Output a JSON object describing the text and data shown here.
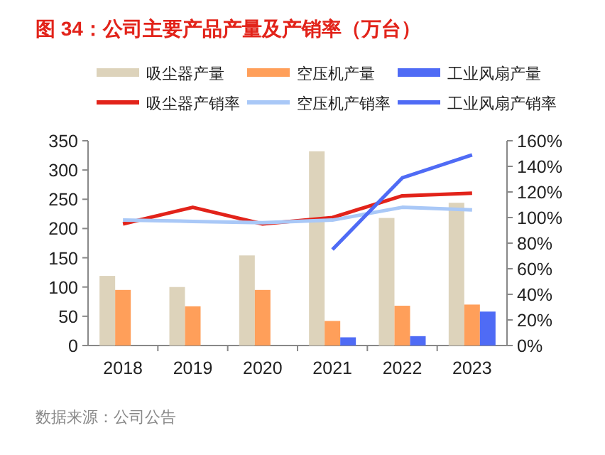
{
  "chart_data": {
    "type": "bar",
    "title": "图 34：公司主要产品产量及产销率（万台）",
    "categories": [
      "2018",
      "2019",
      "2020",
      "2021",
      "2022",
      "2023"
    ],
    "series": [
      {
        "name": "吸尘器产量",
        "color": "#ddd3bb",
        "values": [
          119,
          100,
          154,
          332,
          218,
          244
        ]
      },
      {
        "name": "空压机产量",
        "color": "#ff9f5a",
        "values": [
          95,
          67,
          95,
          42,
          68,
          70
        ]
      },
      {
        "name": "工业风扇产量",
        "color": "#4f6bf5",
        "values": [
          null,
          null,
          null,
          14,
          16,
          58
        ]
      },
      {
        "name": "吸尘器产销率",
        "type": "line",
        "axis": "y2",
        "color": "#e2231a",
        "values": [
          95,
          108,
          95,
          100,
          117,
          119
        ]
      },
      {
        "name": "空压机产销率",
        "type": "line",
        "axis": "y2",
        "color": "#a9c8f7",
        "values": [
          98,
          97,
          96,
          98,
          108,
          106
        ]
      },
      {
        "name": "工业风扇产销率",
        "type": "line",
        "axis": "y2",
        "color": "#4f6bf5",
        "values": [
          null,
          null,
          null,
          75,
          131,
          149
        ]
      }
    ],
    "ylim": [
      0,
      350
    ],
    "yticks": [
      0,
      50,
      100,
      150,
      200,
      250,
      300,
      350
    ],
    "y2lim": [
      0,
      160
    ],
    "y2ticks": [
      {
        "value": 0,
        "label": "0%"
      },
      {
        "value": 20,
        "label": "20%"
      },
      {
        "value": 40,
        "label": "40%"
      },
      {
        "value": 60,
        "label": "60%"
      },
      {
        "value": 80,
        "label": "80%"
      },
      {
        "value": 100,
        "label": "100%"
      },
      {
        "value": 120,
        "label": "120%"
      },
      {
        "value": 140,
        "label": "140%"
      },
      {
        "value": 160,
        "label": "160%"
      }
    ],
    "legend": "top",
    "grid": false,
    "annotations": [
      "数据来源：公司公告"
    ]
  }
}
